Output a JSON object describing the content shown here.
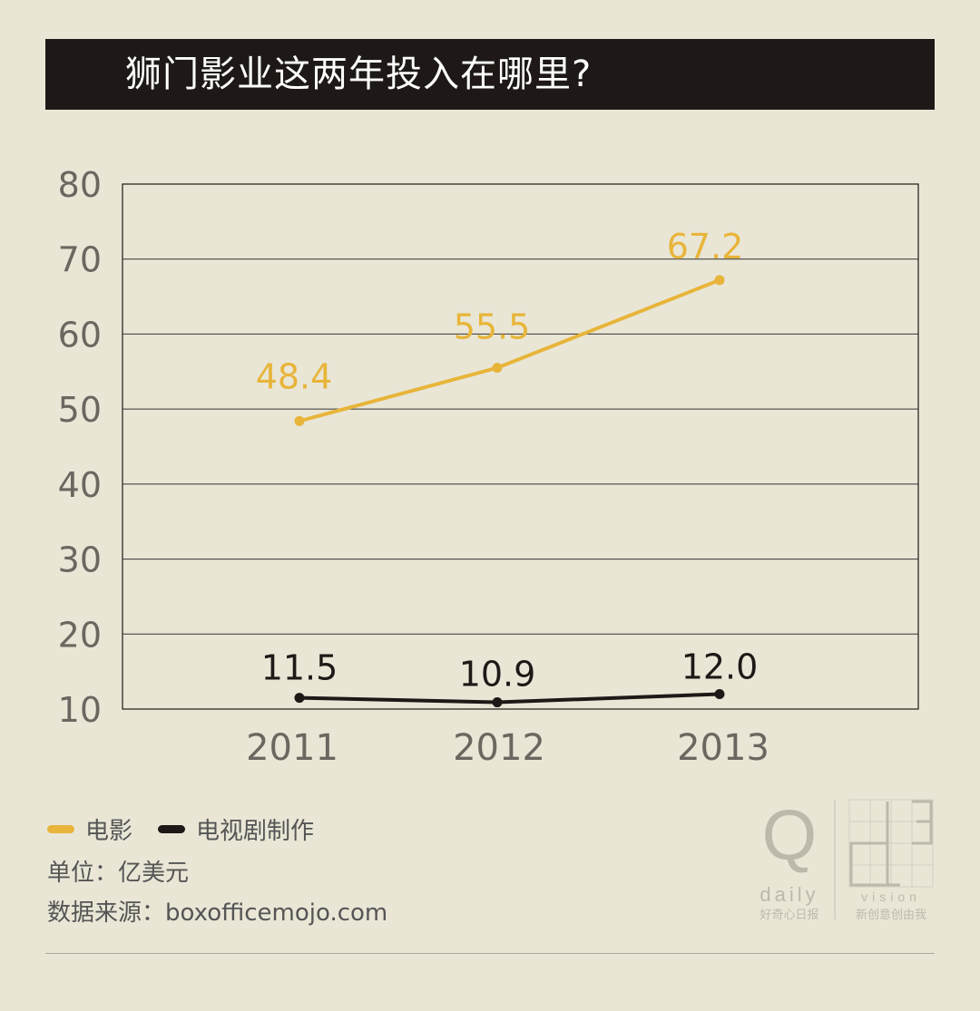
{
  "title": "狮门影业这两年投入在哪里?",
  "legend": [
    {
      "label": "电影",
      "color": "#e8b53a"
    },
    {
      "label": "电视剧制作",
      "color": "#1e1916"
    }
  ],
  "unit_label": "单位：亿美元",
  "source_label": "数据来源：boxofficemojo.com",
  "logo": {
    "left_letter": "Q",
    "left_word": "daily",
    "left_caption": "好奇心日报",
    "right_word": "vision",
    "right_caption": "新创意创由我"
  },
  "chart_data": {
    "type": "line",
    "categories": [
      "2011",
      "2012",
      "2013"
    ],
    "series": [
      {
        "name": "电影",
        "values": [
          48.4,
          55.5,
          67.2
        ],
        "labels": [
          "48.4",
          "55.5",
          "67.2"
        ],
        "color": "#e8b53a"
      },
      {
        "name": "电视剧制作",
        "values": [
          11.5,
          10.9,
          12.0
        ],
        "labels": [
          "11.5",
          "10.9",
          "12.0"
        ],
        "color": "#1e1916"
      }
    ],
    "ylim": [
      10,
      80
    ],
    "yticks": [
      10,
      20,
      30,
      40,
      50,
      60,
      70,
      80
    ],
    "grid": true
  }
}
